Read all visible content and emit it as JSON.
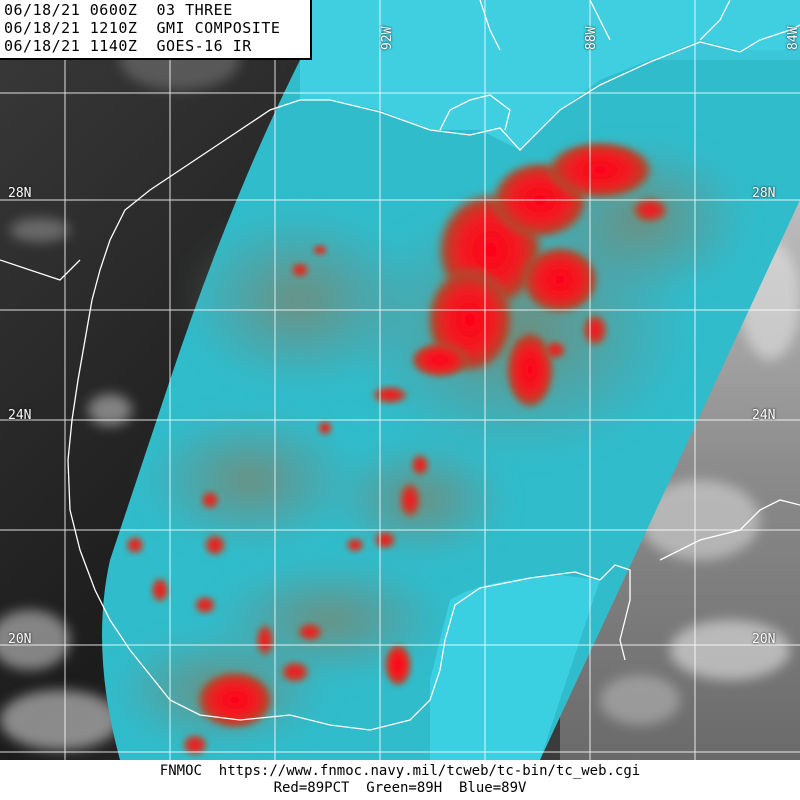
{
  "header": {
    "line1": "06/18/21 0600Z  03 THREE",
    "line2": "06/18/21 1210Z  GMI COMPOSITE",
    "line3": "06/18/21 1140Z  GOES-16 IR"
  },
  "grid": {
    "lat_labels": [
      "28N",
      "28N",
      "24N",
      "24N",
      "20N",
      "20N"
    ],
    "lon_labels": [
      "92W",
      "88W",
      "84W"
    ]
  },
  "footer": {
    "source": "FNMOC  https://www.fnmoc.navy.mil/tcweb/tc-bin/tc_web.cgi",
    "legend": "Red=89PCT  Green=89H  Blue=89V"
  },
  "colors": {
    "ocean": "#3ec8d8",
    "microwave_ocean": "#2fb9c6",
    "cloud_gray": "#6f7a7a",
    "convection_red": "#ff1420",
    "ir_land": "#2a2a2a",
    "coastline": "#ffffff"
  }
}
